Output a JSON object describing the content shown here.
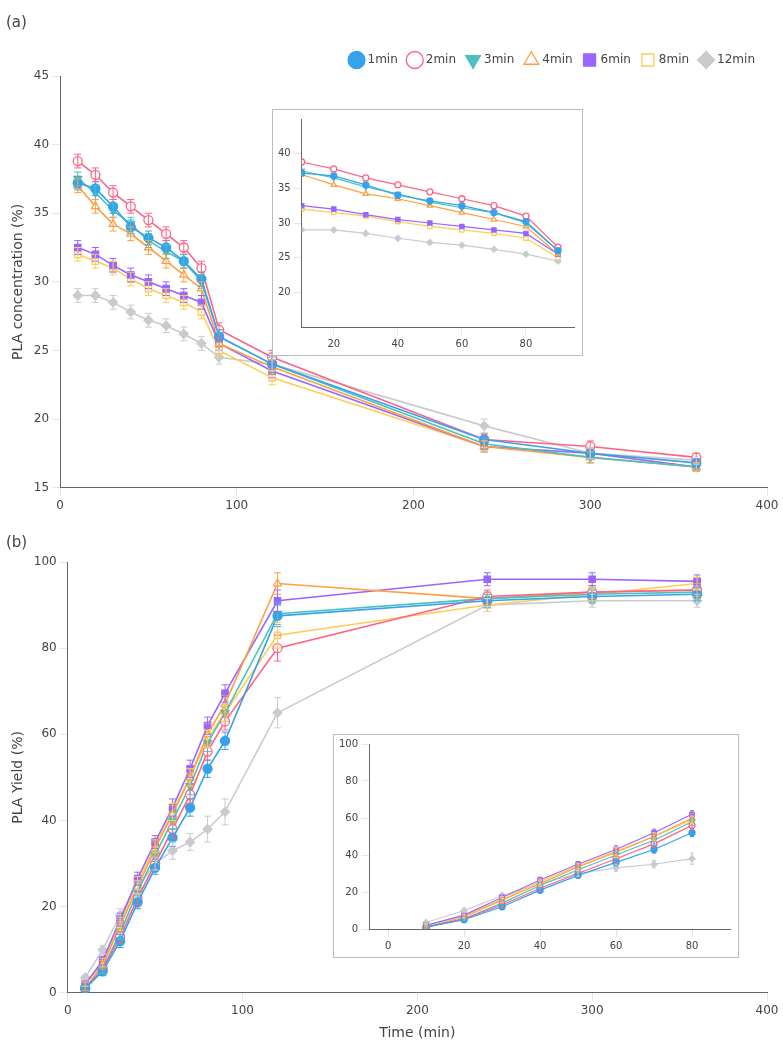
{
  "chart_data": [
    {
      "type": "line",
      "title": "(a)",
      "ylabel": "PLA concentration (%)",
      "xlim": [
        0,
        400
      ],
      "xticks": [
        0,
        100,
        200,
        300,
        400
      ],
      "ylim": [
        15,
        45
      ],
      "yticks": [
        15,
        20,
        25,
        30,
        35,
        40,
        45
      ],
      "grid": false,
      "legend": "upper right",
      "x": [
        10,
        20,
        30,
        40,
        50,
        60,
        70,
        80,
        90,
        120,
        240,
        300,
        360
      ],
      "series": [
        {
          "name": "1min",
          "marker": "circle",
          "values": [
            37.2,
            36.8,
            35.5,
            34.0,
            33.2,
            32.5,
            31.5,
            30.2,
            26.0,
            24.0,
            18.5,
            17.5,
            16.8
          ],
          "yerr": [
            0.5,
            0.5,
            0.5,
            0.5,
            0.5,
            0.5,
            0.5,
            0.5,
            0.5,
            0.6,
            0.4,
            0.4,
            0.3
          ]
        },
        {
          "name": "2min",
          "marker": "circle-open",
          "values": [
            38.8,
            37.8,
            36.5,
            35.5,
            34.5,
            33.5,
            32.5,
            31.0,
            26.5,
            24.5,
            18.5,
            18.0,
            17.2
          ],
          "yerr": [
            0.5,
            0.5,
            0.5,
            0.5,
            0.5,
            0.5,
            0.5,
            0.5,
            0.5,
            0.5,
            0.4,
            0.4,
            0.3
          ]
        },
        {
          "name": "3min",
          "marker": "triangle-down",
          "values": [
            37.5,
            36.5,
            35.2,
            34.2,
            33.0,
            32.2,
            31.5,
            30.0,
            26.0,
            24.0,
            18.2,
            17.2,
            16.5
          ],
          "yerr": [
            0.5,
            0.5,
            0.5,
            0.5,
            0.5,
            0.5,
            0.5,
            0.5,
            0.5,
            0.5,
            0.4,
            0.4,
            0.3
          ]
        },
        {
          "name": "4min",
          "marker": "triangle-open",
          "values": [
            37.0,
            35.5,
            34.2,
            33.5,
            32.5,
            31.5,
            30.5,
            29.5,
            25.5,
            23.8,
            18.0,
            17.2,
            16.5
          ],
          "yerr": [
            0.5,
            0.5,
            0.5,
            0.5,
            0.5,
            0.5,
            0.5,
            0.5,
            0.5,
            0.5,
            0.4,
            0.4,
            0.3
          ]
        },
        {
          "name": "6min",
          "marker": "square",
          "values": [
            32.5,
            32.0,
            31.2,
            30.5,
            30.0,
            29.5,
            29.0,
            28.5,
            25.5,
            23.5,
            18.0,
            17.5,
            16.5
          ],
          "yerr": [
            0.5,
            0.5,
            0.5,
            0.5,
            0.5,
            0.5,
            0.5,
            0.5,
            0.5,
            0.5,
            0.4,
            0.4,
            0.3
          ]
        },
        {
          "name": "8min",
          "marker": "square-open",
          "values": [
            32.0,
            31.5,
            31.0,
            30.2,
            29.5,
            29.0,
            28.5,
            27.8,
            25.0,
            23.0,
            18.0,
            17.5,
            16.5
          ],
          "yerr": [
            0.5,
            0.5,
            0.5,
            0.5,
            0.5,
            0.5,
            0.5,
            0.5,
            0.5,
            0.5,
            0.4,
            0.4,
            0.3
          ]
        },
        {
          "name": "12min",
          "marker": "diamond",
          "values": [
            29.0,
            29.0,
            28.5,
            27.8,
            27.2,
            26.8,
            26.2,
            25.5,
            24.5,
            24.0,
            19.5,
            17.5,
            17.0
          ],
          "yerr": [
            0.5,
            0.5,
            0.5,
            0.5,
            0.5,
            0.5,
            0.5,
            0.5,
            0.5,
            0.5,
            0.5,
            0.4,
            0.3
          ]
        }
      ]
    },
    {
      "type": "line",
      "xlim": [
        10,
        95
      ],
      "xticks": [
        20,
        40,
        60,
        80
      ],
      "ylim": [
        15,
        45
      ],
      "yticks": [
        20,
        25,
        30,
        35,
        40
      ],
      "grid": false,
      "x": [
        10,
        20,
        30,
        40,
        50,
        60,
        70,
        80,
        90
      ],
      "series": [
        {
          "name": "1min",
          "marker": "circle",
          "values": [
            37.2,
            36.8,
            35.5,
            34.0,
            33.2,
            32.5,
            31.5,
            30.2,
            26.0
          ]
        },
        {
          "name": "2min",
          "marker": "circle-open",
          "values": [
            38.8,
            37.8,
            36.5,
            35.5,
            34.5,
            33.5,
            32.5,
            31.0,
            26.5
          ]
        },
        {
          "name": "3min",
          "marker": "triangle-down",
          "values": [
            37.5,
            36.5,
            35.2,
            34.2,
            33.0,
            32.2,
            31.5,
            30.0,
            26.0
          ]
        },
        {
          "name": "4min",
          "marker": "triangle-open",
          "values": [
            37.0,
            35.5,
            34.2,
            33.5,
            32.5,
            31.5,
            30.5,
            29.5,
            25.5
          ]
        },
        {
          "name": "6min",
          "marker": "square",
          "values": [
            32.5,
            32.0,
            31.2,
            30.5,
            30.0,
            29.5,
            29.0,
            28.5,
            25.5
          ]
        },
        {
          "name": "8min",
          "marker": "square-open",
          "values": [
            32.0,
            31.5,
            31.0,
            30.2,
            29.5,
            29.0,
            28.5,
            27.8,
            25.0
          ]
        },
        {
          "name": "12min",
          "marker": "diamond",
          "values": [
            29.0,
            29.0,
            28.5,
            27.8,
            27.2,
            26.8,
            26.2,
            25.5,
            24.5
          ]
        }
      ]
    },
    {
      "type": "line",
      "title": "(b)",
      "ylabel": "PLA Yield (%)",
      "xlabel": "Time (min)",
      "xlim": [
        0,
        400
      ],
      "xticks": [
        0,
        100,
        200,
        300,
        400
      ],
      "ylim": [
        0,
        100
      ],
      "yticks": [
        0,
        20,
        40,
        60,
        80,
        100
      ],
      "grid": false,
      "x": [
        10,
        20,
        30,
        40,
        50,
        60,
        70,
        80,
        90,
        120,
        240,
        300,
        360
      ],
      "series": [
        {
          "name": "1min",
          "marker": "circle",
          "values": [
            1.0,
            5.0,
            12.0,
            21.0,
            29.0,
            36.0,
            43.0,
            52.0,
            58.5,
            87.5,
            91.0,
            92.0,
            92.5
          ],
          "yerr": [
            0.5,
            1.0,
            1.5,
            1.5,
            1.5,
            2.0,
            2.0,
            2.0,
            2.0,
            2.5,
            1.5,
            1.5,
            1.5
          ]
        },
        {
          "name": "2min",
          "marker": "circle-open",
          "values": [
            1.0,
            5.5,
            13.0,
            22.0,
            30.0,
            38.0,
            46.0,
            56.0,
            63.0,
            80.0,
            92.0,
            93.0,
            93.5
          ],
          "yerr": [
            0.5,
            1.0,
            1.5,
            1.5,
            1.5,
            2.0,
            2.0,
            2.0,
            2.0,
            3.0,
            1.5,
            1.5,
            1.5
          ]
        },
        {
          "name": "3min",
          "marker": "triangle-down",
          "values": [
            1.0,
            5.5,
            14.0,
            23.5,
            32.0,
            40.0,
            48.0,
            58.0,
            65.0,
            88.0,
            91.5,
            92.5,
            93.0
          ],
          "yerr": [
            0.5,
            1.0,
            1.5,
            1.5,
            1.5,
            2.0,
            2.0,
            2.0,
            2.0,
            2.5,
            1.5,
            1.5,
            1.5
          ]
        },
        {
          "name": "4min",
          "marker": "triangle-open",
          "values": [
            1.0,
            6.5,
            15.5,
            24.5,
            33.5,
            41.5,
            50.0,
            60.0,
            67.0,
            95.0,
            91.5,
            93.0,
            93.5
          ],
          "yerr": [
            0.5,
            1.0,
            1.5,
            1.5,
            1.5,
            2.0,
            2.0,
            2.5,
            2.0,
            2.5,
            1.5,
            1.5,
            1.5
          ]
        },
        {
          "name": "6min",
          "marker": "square",
          "values": [
            2.0,
            7.5,
            17.0,
            26.5,
            35.0,
            43.0,
            52.0,
            62.0,
            69.5,
            91.0,
            96.0,
            96.0,
            95.5
          ],
          "yerr": [
            0.5,
            1.0,
            1.5,
            1.5,
            1.5,
            2.0,
            2.0,
            2.0,
            2.0,
            2.5,
            1.5,
            1.5,
            1.5
          ]
        },
        {
          "name": "8min",
          "marker": "square-open",
          "values": [
            2.0,
            7.0,
            16.0,
            25.5,
            34.0,
            42.0,
            50.0,
            59.0,
            65.0,
            83.0,
            90.0,
            92.5,
            95.0
          ],
          "yerr": [
            0.5,
            1.0,
            1.5,
            1.5,
            1.5,
            2.0,
            2.0,
            2.0,
            2.0,
            3.0,
            1.5,
            1.5,
            1.5
          ]
        },
        {
          "name": "12min",
          "marker": "diamond",
          "values": [
            3.5,
            10.0,
            18.0,
            24.5,
            30.0,
            33.0,
            35.0,
            38.0,
            42.0,
            65.0,
            90.0,
            91.0,
            91.0
          ],
          "yerr": [
            0.5,
            1.0,
            1.5,
            1.5,
            1.5,
            2.0,
            2.0,
            3.0,
            3.0,
            3.5,
            1.5,
            1.5,
            1.5
          ]
        }
      ]
    },
    {
      "type": "line",
      "xlim": [
        -5,
        90
      ],
      "xticks": [
        0,
        20,
        40,
        60,
        80
      ],
      "ylim": [
        0,
        100
      ],
      "yticks": [
        0,
        20,
        40,
        60,
        80,
        100
      ],
      "grid": false,
      "x": [
        10,
        20,
        30,
        40,
        50,
        60,
        70,
        80
      ],
      "series": [
        {
          "name": "1min",
          "marker": "circle",
          "values": [
            1.0,
            5.0,
            12.0,
            21.0,
            29.0,
            36.0,
            43.0,
            52.0
          ],
          "yerr": [
            0.5,
            1.0,
            1.5,
            1.5,
            1.5,
            2.0,
            2.0,
            2.0
          ]
        },
        {
          "name": "2min",
          "marker": "circle-open",
          "values": [
            1.0,
            5.5,
            13.0,
            22.0,
            30.0,
            38.0,
            46.0,
            56.0
          ],
          "yerr": [
            0.5,
            1.0,
            1.5,
            1.5,
            1.5,
            2.0,
            2.0,
            2.0
          ]
        },
        {
          "name": "3min",
          "marker": "triangle-down",
          "values": [
            1.0,
            5.5,
            14.0,
            23.5,
            32.0,
            40.0,
            48.0,
            58.0
          ],
          "yerr": [
            0.5,
            1.0,
            1.5,
            1.5,
            1.5,
            2.0,
            2.0,
            2.0
          ]
        },
        {
          "name": "4min",
          "marker": "triangle-open",
          "values": [
            1.0,
            6.5,
            15.5,
            24.5,
            33.5,
            41.5,
            50.0,
            60.0
          ],
          "yerr": [
            0.5,
            1.0,
            1.5,
            1.5,
            1.5,
            2.0,
            2.0,
            2.5
          ]
        },
        {
          "name": "6min",
          "marker": "square",
          "values": [
            2.0,
            7.5,
            17.0,
            26.5,
            35.0,
            43.0,
            52.0,
            62.0
          ],
          "yerr": [
            0.5,
            1.0,
            1.5,
            1.5,
            1.5,
            2.0,
            2.0,
            2.0
          ]
        },
        {
          "name": "8min",
          "marker": "square-open",
          "values": [
            2.0,
            7.0,
            16.0,
            25.5,
            34.0,
            42.0,
            50.0,
            59.0
          ],
          "yerr": [
            0.5,
            1.0,
            1.5,
            1.5,
            1.5,
            2.0,
            2.0,
            2.0
          ]
        },
        {
          "name": "12min",
          "marker": "diamond",
          "values": [
            3.5,
            10.0,
            18.0,
            24.5,
            30.0,
            33.0,
            35.0,
            38.0
          ],
          "yerr": [
            0.5,
            1.0,
            1.5,
            1.5,
            1.5,
            2.0,
            2.0,
            3.0
          ]
        }
      ]
    }
  ]
}
